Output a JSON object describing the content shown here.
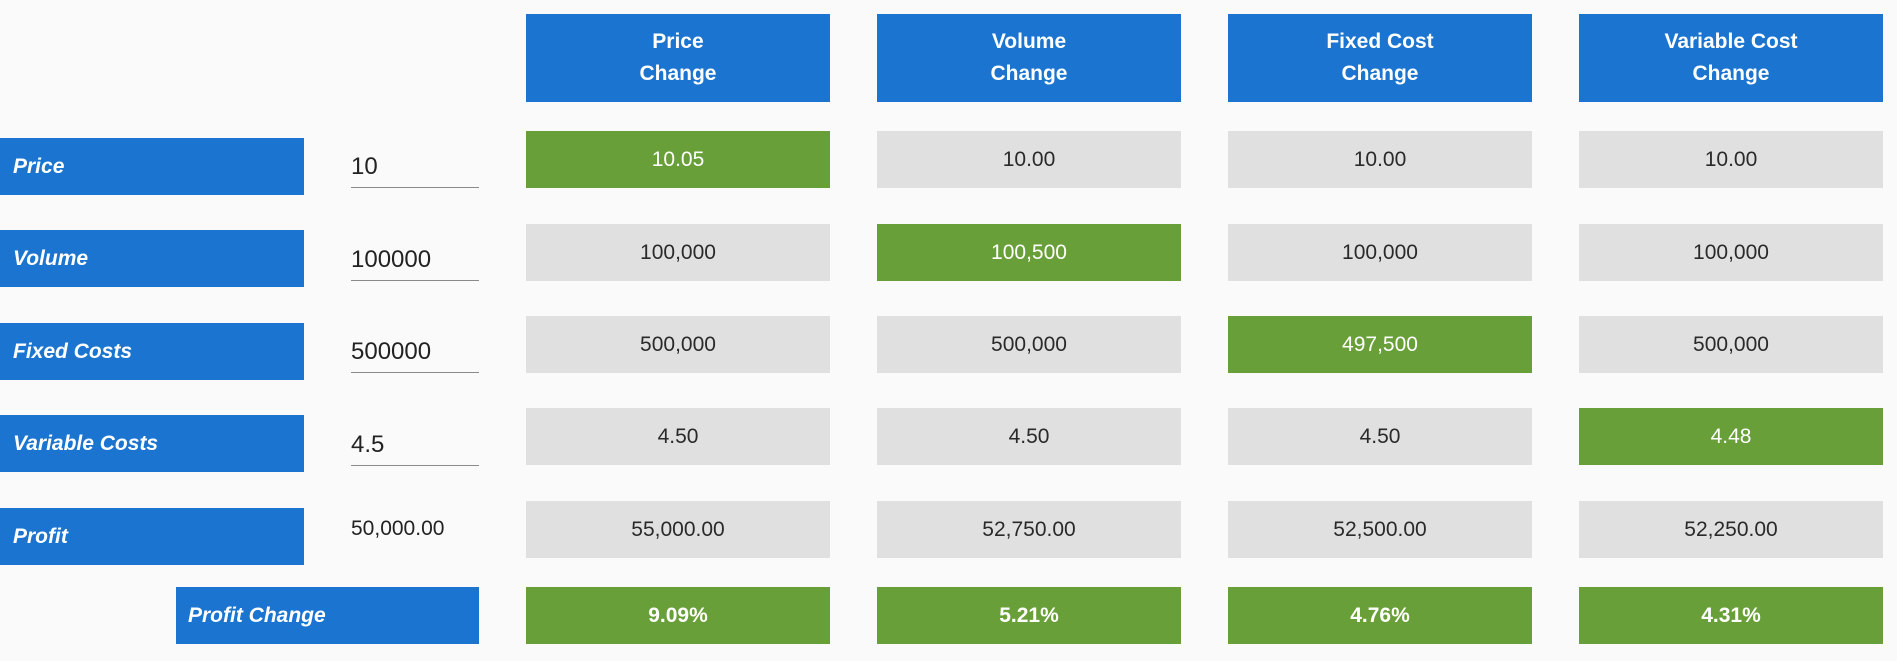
{
  "headers": [
    "Price\nChange",
    "Volume\nChange",
    "Fixed Cost\nChange",
    "Variable Cost\nChange"
  ],
  "rows": {
    "price": {
      "label": "Price",
      "input": "10",
      "values": [
        "10.05",
        "10.00",
        "10.00",
        "10.00"
      ]
    },
    "volume": {
      "label": "Volume",
      "input": "100000",
      "values": [
        "100,000",
        "100,500",
        "100,000",
        "100,000"
      ]
    },
    "fixed_costs": {
      "label": "Fixed Costs",
      "input": "500000",
      "values": [
        "500,000",
        "500,000",
        "497,500",
        "500,000"
      ]
    },
    "variable_costs": {
      "label": "Variable Costs",
      "input": "4.5",
      "values": [
        "4.50",
        "4.50",
        "4.50",
        "4.48"
      ]
    },
    "profit": {
      "label": "Profit",
      "value": "50,000.00",
      "values": [
        "55,000.00",
        "52,750.00",
        "52,500.00",
        "52,250.00"
      ]
    }
  },
  "profit_change": {
    "label": "Profit Change",
    "values": [
      "9.09%",
      "5.21%",
      "4.76%",
      "4.31%"
    ]
  },
  "colors": {
    "header_blue": "#1b75d0",
    "highlight_green": "#689f38",
    "cell_gray": "#e0e0e0"
  }
}
